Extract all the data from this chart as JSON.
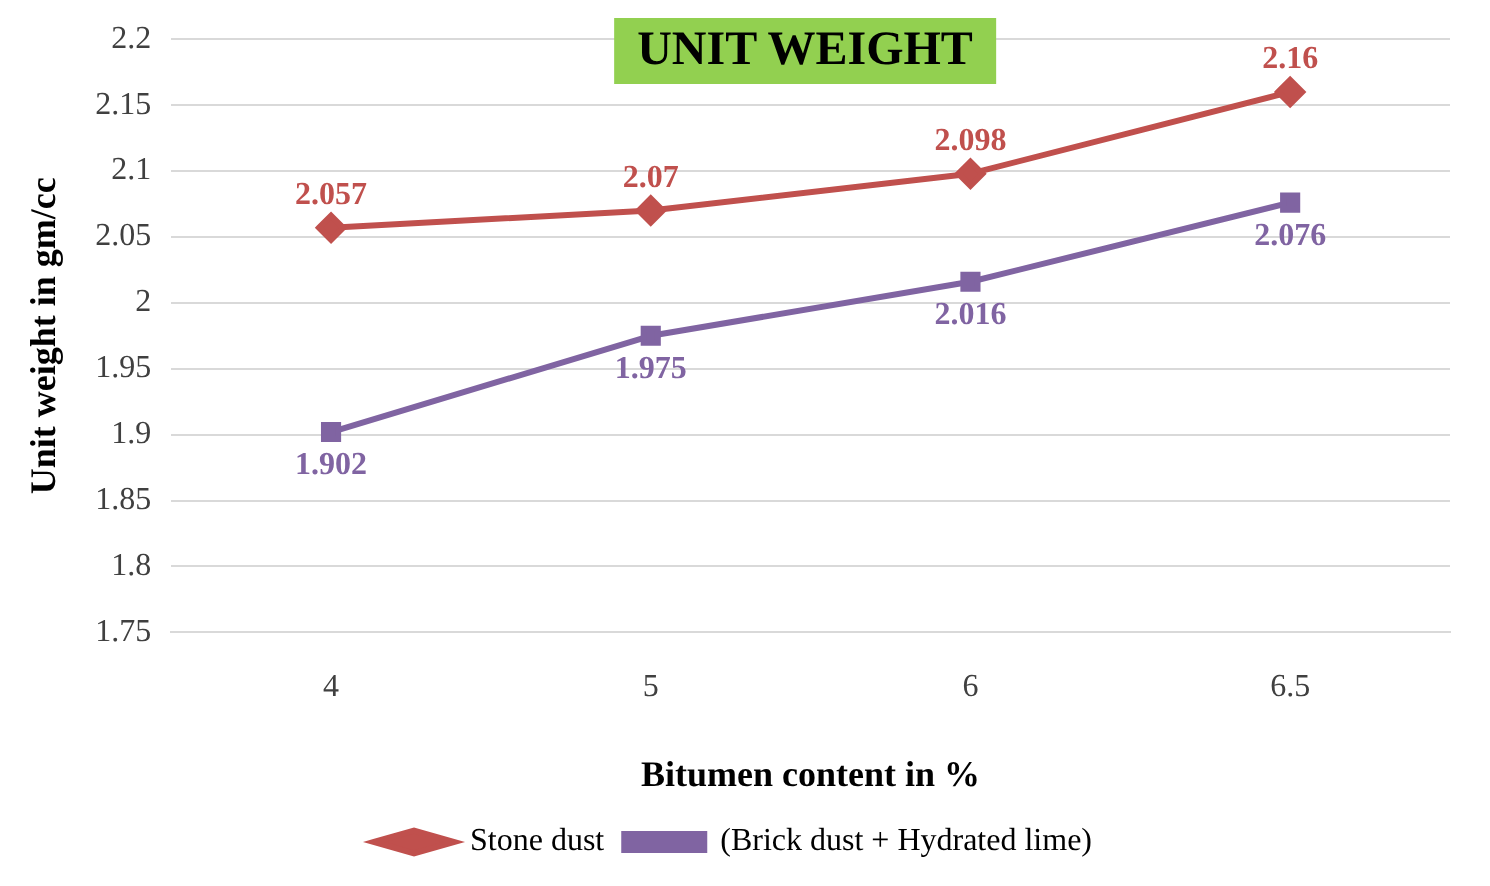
{
  "chart_data": {
    "type": "line",
    "title": "UNIT WEIGHT",
    "xlabel": "Bitumen content in %",
    "ylabel": "Unit weight in gm/cc",
    "categories": [
      "4",
      "5",
      "6",
      "6.5"
    ],
    "series": [
      {
        "name": "Stone dust",
        "color": "#c0504d",
        "marker": "diamond",
        "values": [
          2.057,
          2.07,
          2.098,
          2.16
        ]
      },
      {
        "name": "(Brick dust + Hydrated lime)",
        "color": "#8064a2",
        "marker": "square",
        "values": [
          1.902,
          1.975,
          2.016,
          2.076
        ]
      }
    ],
    "ylim": [
      1.75,
      2.2
    ],
    "yticks": [
      1.75,
      1.8,
      1.85,
      1.9,
      1.95,
      2,
      2.05,
      2.1,
      2.15,
      2.2
    ],
    "grid": "y",
    "legend": "bottom",
    "data_labels": true,
    "line_style": "solid"
  }
}
